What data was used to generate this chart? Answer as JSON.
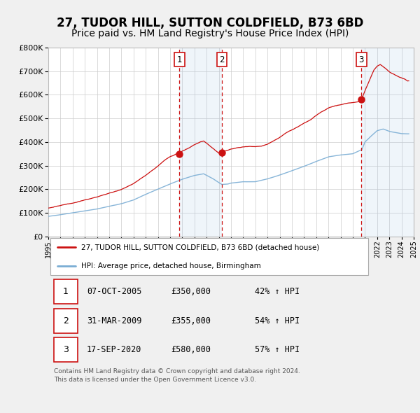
{
  "title": "27, TUDOR HILL, SUTTON COLDFIELD, B73 6BD",
  "subtitle": "Price paid vs. HM Land Registry's House Price Index (HPI)",
  "title_fontsize": 12,
  "subtitle_fontsize": 10,
  "hpi_color": "#7aadd4",
  "hpi_fill_color": "#d0e4f4",
  "sale_color": "#cc1111",
  "background_color": "#f0f0f0",
  "plot_bg_color": "#ffffff",
  "grid_color": "#cccccc",
  "ylim": [
    0,
    800000
  ],
  "yticks": [
    0,
    100000,
    200000,
    300000,
    400000,
    500000,
    600000,
    700000,
    800000
  ],
  "x_start_year": 1995,
  "x_end_year": 2025,
  "sale_dates": [
    2005.77,
    2009.25,
    2020.71
  ],
  "sale_prices": [
    350000,
    355000,
    580000
  ],
  "sale_labels": [
    "1",
    "2",
    "3"
  ],
  "legend_sale_label": "27, TUDOR HILL, SUTTON COLDFIELD, B73 6BD (detached house)",
  "legend_hpi_label": "HPI: Average price, detached house, Birmingham",
  "table_rows": [
    {
      "num": "1",
      "date": "07-OCT-2005",
      "price": "£350,000",
      "hpi": "42% ↑ HPI"
    },
    {
      "num": "2",
      "date": "31-MAR-2009",
      "price": "£355,000",
      "hpi": "54% ↑ HPI"
    },
    {
      "num": "3",
      "date": "17-SEP-2020",
      "price": "£580,000",
      "hpi": "57% ↑ HPI"
    }
  ],
  "footnote": "Contains HM Land Registry data © Crown copyright and database right 2024.\nThis data is licensed under the Open Government Licence v3.0."
}
